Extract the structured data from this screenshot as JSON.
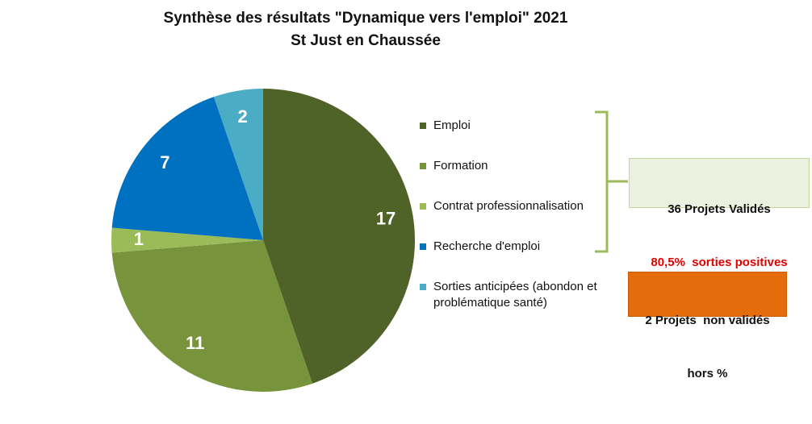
{
  "chart_data": {
    "type": "pie",
    "title": "Synthèse des résultats \"Dynamique vers l'emploi\" 2021",
    "subtitle": "St Just en Chaussée",
    "categories": [
      "Emploi",
      "Formation",
      "Contrat professionnalisation",
      "Recherche d'emploi",
      "Sorties anticipées (abondon et problématique santé)"
    ],
    "values": [
      17,
      11,
      1,
      7,
      2
    ],
    "colors": [
      "#4f6228",
      "#77933c",
      "#9bbb59",
      "#0070c0",
      "#4bacc6"
    ],
    "annotations": [
      {
        "lines": [
          "36 Projets Validés",
          "80,5%  sorties positives"
        ]
      },
      {
        "lines": [
          "2 Projets  non validés",
          "hors %"
        ]
      }
    ]
  }
}
